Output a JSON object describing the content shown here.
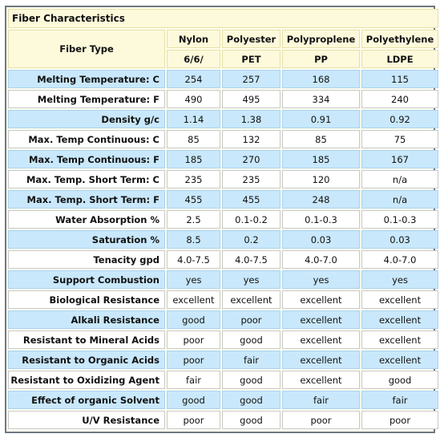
{
  "table": {
    "title": "Fiber Characteristics",
    "header_label": "Fiber Type",
    "columns": [
      {
        "name": "Nylon",
        "code": "6/6/"
      },
      {
        "name": "Polyester",
        "code": "PET"
      },
      {
        "name": "Polyproplene",
        "code": "PP"
      },
      {
        "name": "Polyethylene",
        "code": "LDPE"
      }
    ],
    "rows": [
      {
        "label": "Melting Temperature: C",
        "values": [
          "254",
          "257",
          "168",
          "115"
        ]
      },
      {
        "label": "Melting Temperature: F",
        "values": [
          "490",
          "495",
          "334",
          "240"
        ]
      },
      {
        "label": "Density g/c",
        "values": [
          "1.14",
          "1.38",
          "0.91",
          "0.92"
        ]
      },
      {
        "label": "Max. Temp Continuous: C",
        "values": [
          "85",
          "132",
          "85",
          "75"
        ]
      },
      {
        "label": "Max. Temp Continuous: F",
        "values": [
          "185",
          "270",
          "185",
          "167"
        ]
      },
      {
        "label": "Max. Temp. Short Term: C",
        "values": [
          "235",
          "235",
          "120",
          "n/a"
        ]
      },
      {
        "label": "Max. Temp. Short Term: F",
        "values": [
          "455",
          "455",
          "248",
          "n/a"
        ]
      },
      {
        "label": "Water Absorption %",
        "values": [
          "2.5",
          "0.1-0.2",
          "0.1-0.3",
          "0.1-0.3"
        ]
      },
      {
        "label": "Saturation %",
        "values": [
          "8.5",
          "0.2",
          "0.03",
          "0.03"
        ]
      },
      {
        "label": "Tenacity gpd",
        "values": [
          "4.0-7.5",
          "4.0-7.5",
          "4.0-7.0",
          "4.0-7.0"
        ]
      },
      {
        "label": "Support Combustion",
        "values": [
          "yes",
          "yes",
          "yes",
          "yes"
        ]
      },
      {
        "label": "Biological Resistance",
        "values": [
          "excellent",
          "excellent",
          "excellent",
          "excellent"
        ]
      },
      {
        "label": "Alkali Resistance",
        "values": [
          "good",
          "poor",
          "excellent",
          "excellent"
        ]
      },
      {
        "label": "Resistant to Mineral Acids",
        "values": [
          "poor",
          "good",
          "excellent",
          "excellent"
        ]
      },
      {
        "label": "Resistant to Organic Acids",
        "values": [
          "poor",
          "fair",
          "excellent",
          "excellent"
        ]
      },
      {
        "label": "Resistant to Oxidizing Agent",
        "values": [
          "fair",
          "good",
          "excellent",
          "good"
        ]
      },
      {
        "label": "Effect of organic Solvent",
        "values": [
          "good",
          "good",
          "fair",
          "fair"
        ]
      },
      {
        "label": "U/V Resistance",
        "values": [
          "poor",
          "good",
          "poor",
          "poor"
        ]
      }
    ]
  },
  "colors": {
    "row_blue": "#c9e8fb",
    "row_white": "#ffffff",
    "header_bg": "#fdf9db",
    "frame_border": "#6f7780"
  }
}
